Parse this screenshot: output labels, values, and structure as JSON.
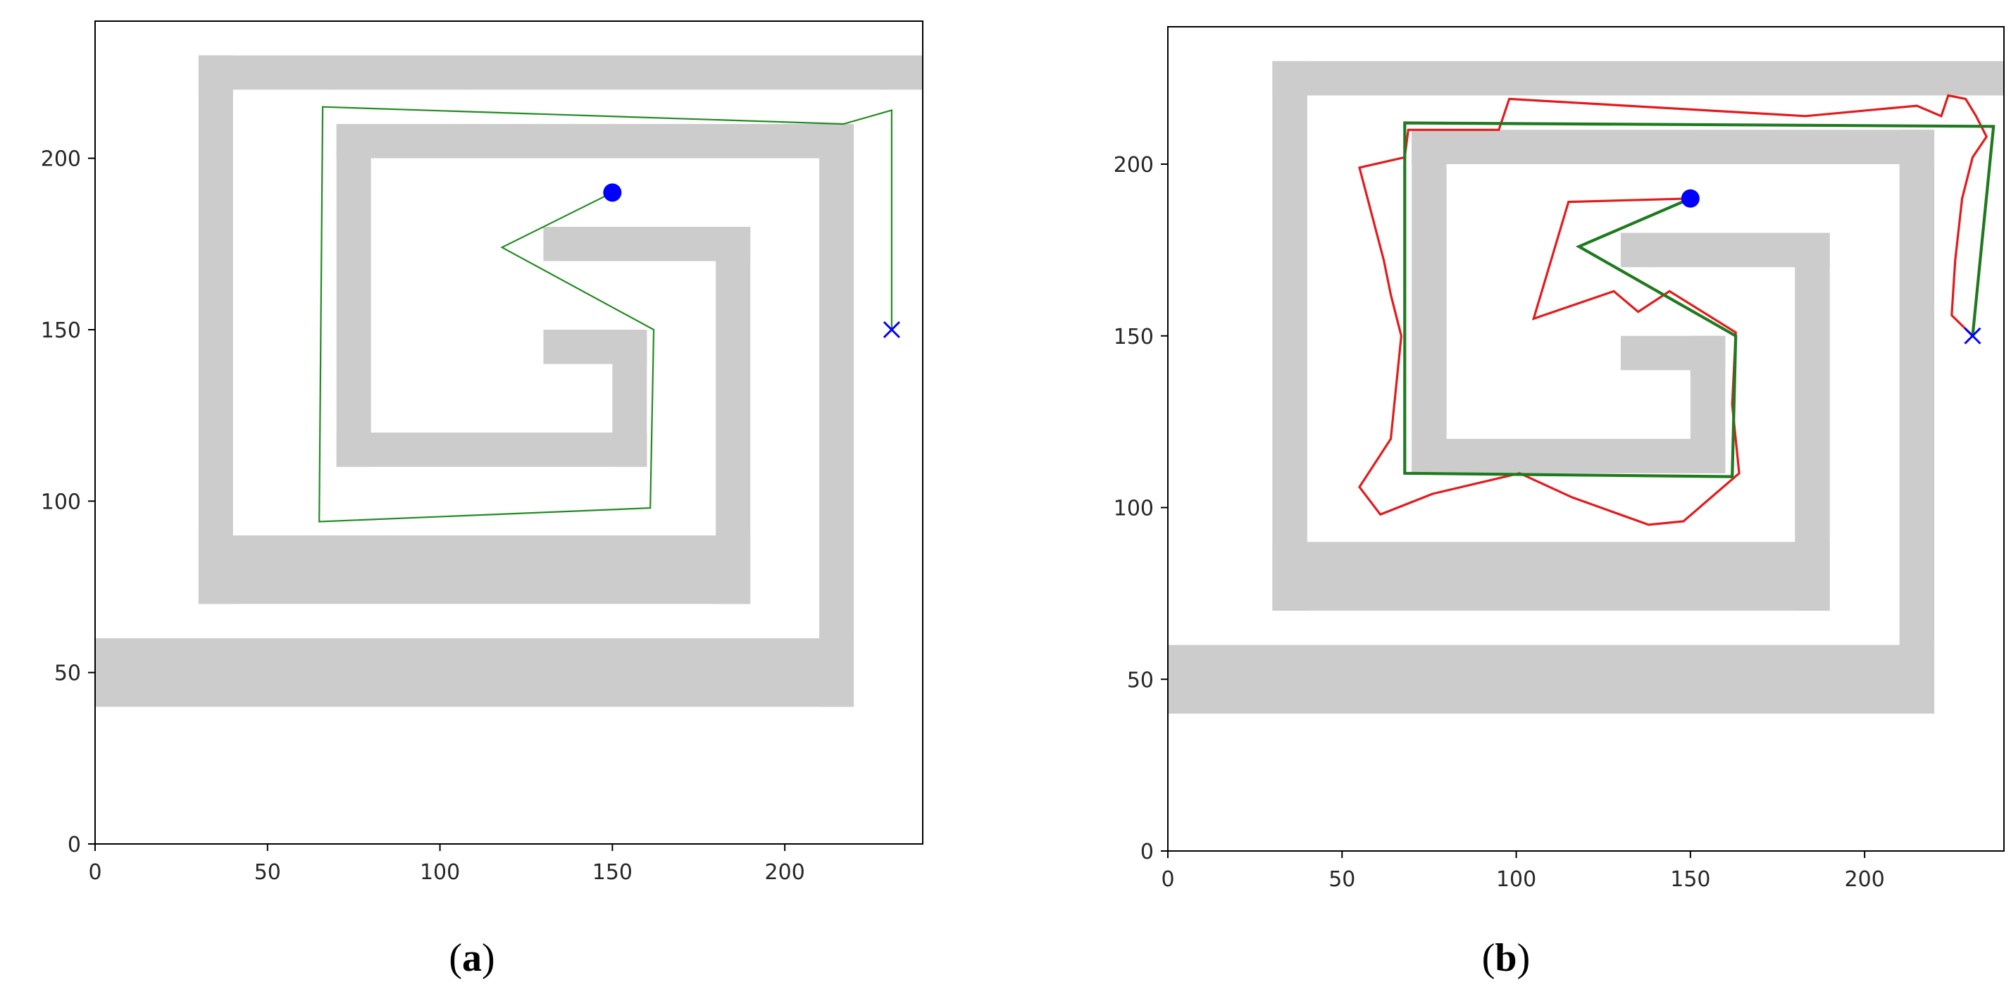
{
  "colors": {
    "wall": "#cccccc",
    "axes_frame": "#000000",
    "path_green": "#228b22",
    "path_red": "#e41a1c",
    "start_marker": "#0000ff",
    "goal_marker": "#0000ff"
  },
  "chart_data": [
    {
      "type": "line",
      "panel": "(a)",
      "panel_letter": "a",
      "xlim": [
        0,
        240
      ],
      "ylim": [
        0,
        240
      ],
      "xticks": [
        0,
        50,
        100,
        150,
        200
      ],
      "yticks": [
        0,
        50,
        100,
        150,
        200
      ],
      "grid": false,
      "walls": [
        {
          "x0": 30,
          "x1": 240,
          "y0": 220,
          "y1": 230
        },
        {
          "x0": 30,
          "x1": 40,
          "y0": 70,
          "y1": 230
        },
        {
          "x0": 30,
          "x1": 190,
          "y0": 70,
          "y1": 90
        },
        {
          "x0": 180,
          "x1": 190,
          "y0": 70,
          "y1": 180
        },
        {
          "x0": 130,
          "x1": 190,
          "y0": 170,
          "y1": 180
        },
        {
          "x0": 70,
          "x1": 220,
          "y0": 200,
          "y1": 210
        },
        {
          "x0": 210,
          "x1": 220,
          "y0": 40,
          "y1": 210
        },
        {
          "x0": 0,
          "x1": 220,
          "y0": 40,
          "y1": 60
        },
        {
          "x0": 70,
          "x1": 80,
          "y0": 110,
          "y1": 210
        },
        {
          "x0": 70,
          "x1": 160,
          "y0": 110,
          "y1": 120
        },
        {
          "x0": 150,
          "x1": 160,
          "y0": 110,
          "y1": 150
        },
        {
          "x0": 130,
          "x1": 160,
          "y0": 140,
          "y1": 150
        }
      ],
      "start": {
        "x": 150,
        "y": 190
      },
      "goal": {
        "x": 231,
        "y": 150
      },
      "series": [
        {
          "color": "#228b22",
          "width": 2.2,
          "points": [
            [
              150,
              190
            ],
            [
              118,
              174
            ],
            [
              162,
              150
            ],
            [
              161,
              98
            ],
            [
              65,
              94
            ],
            [
              66,
              215
            ],
            [
              217,
              210
            ],
            [
              231,
              214
            ],
            [
              231,
              150
            ]
          ]
        }
      ]
    },
    {
      "type": "line",
      "panel": "(b)",
      "panel_letter": "b",
      "xlim": [
        0,
        240
      ],
      "ylim": [
        0,
        240
      ],
      "xticks": [
        0,
        50,
        100,
        150,
        200
      ],
      "yticks": [
        0,
        50,
        100,
        150,
        200
      ],
      "grid": false,
      "walls": [
        {
          "x0": 30,
          "x1": 240,
          "y0": 220,
          "y1": 230
        },
        {
          "x0": 30,
          "x1": 40,
          "y0": 70,
          "y1": 230
        },
        {
          "x0": 30,
          "x1": 190,
          "y0": 70,
          "y1": 90
        },
        {
          "x0": 180,
          "x1": 190,
          "y0": 70,
          "y1": 180
        },
        {
          "x0": 130,
          "x1": 190,
          "y0": 170,
          "y1": 180
        },
        {
          "x0": 70,
          "x1": 220,
          "y0": 200,
          "y1": 210
        },
        {
          "x0": 210,
          "x1": 220,
          "y0": 40,
          "y1": 210
        },
        {
          "x0": 0,
          "x1": 220,
          "y0": 40,
          "y1": 60
        },
        {
          "x0": 70,
          "x1": 80,
          "y0": 110,
          "y1": 210
        },
        {
          "x0": 70,
          "x1": 160,
          "y0": 110,
          "y1": 120
        },
        {
          "x0": 150,
          "x1": 160,
          "y0": 110,
          "y1": 150
        },
        {
          "x0": 130,
          "x1": 160,
          "y0": 140,
          "y1": 150
        }
      ],
      "start": {
        "x": 150,
        "y": 190
      },
      "goal": {
        "x": 231,
        "y": 150
      },
      "series": [
        {
          "color": "#e41a1c",
          "width": 3.2,
          "points": [
            [
              150,
              190
            ],
            [
              115,
              189
            ],
            [
              105,
              155
            ],
            [
              128,
              163
            ],
            [
              135,
              157
            ],
            [
              144,
              163
            ],
            [
              163,
              151
            ],
            [
              162,
              130
            ],
            [
              164,
              110
            ],
            [
              148,
              96
            ],
            [
              138,
              95
            ],
            [
              116,
              103
            ],
            [
              101,
              110
            ],
            [
              76,
              104
            ],
            [
              61,
              98
            ],
            [
              55,
              106
            ],
            [
              64,
              120
            ],
            [
              67,
              150
            ],
            [
              64,
              162
            ],
            [
              62,
              172
            ],
            [
              55,
              199
            ],
            [
              68,
              202
            ],
            [
              69,
              210
            ],
            [
              95,
              210
            ],
            [
              98,
              219
            ],
            [
              183,
              214
            ],
            [
              215,
              217
            ],
            [
              222,
              214
            ],
            [
              224,
              220
            ],
            [
              229,
              219
            ],
            [
              232,
              214
            ],
            [
              235,
              208
            ],
            [
              231,
              202
            ],
            [
              228,
              190
            ],
            [
              226,
              172
            ],
            [
              225,
              156
            ],
            [
              231,
              150
            ]
          ]
        },
        {
          "color": "#1f7a1f",
          "width": 4.2,
          "points": [
            [
              150,
              190
            ],
            [
              118,
              176
            ],
            [
              163,
              150
            ],
            [
              162,
              109
            ],
            [
              68,
              110
            ],
            [
              68,
              212
            ],
            [
              237,
              211
            ],
            [
              231,
              150
            ]
          ]
        }
      ]
    }
  ]
}
